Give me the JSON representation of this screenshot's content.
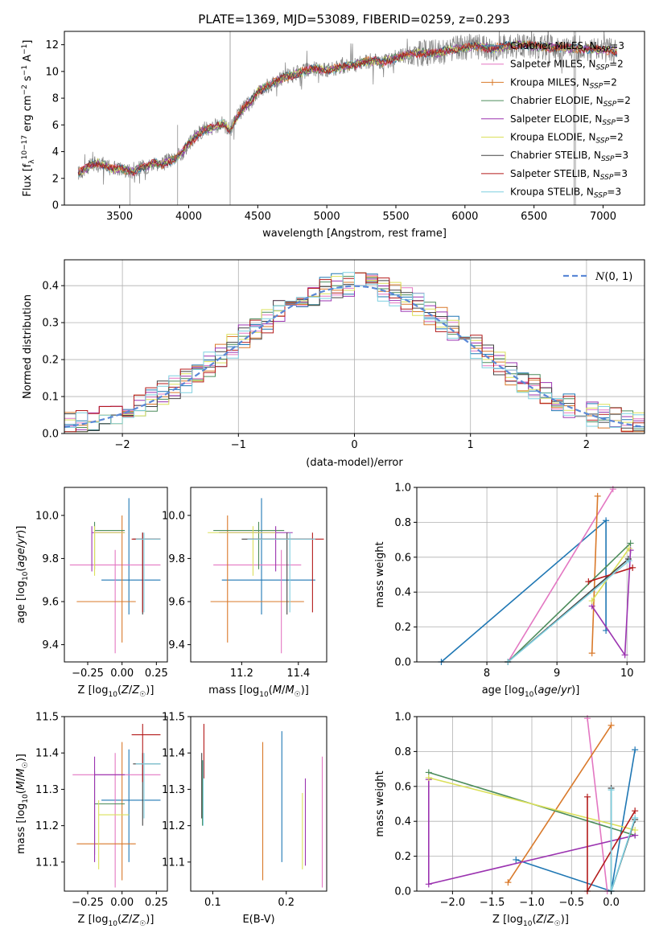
{
  "figure_title": "PLATE=1369, MJD=53089, FIBERID=0259, z=0.293",
  "colors": {
    "chabrier_miles": "#1f77b4",
    "salpeter_miles": "#e377c2",
    "kroupa_miles": "#d9792a",
    "chabrier_elodie": "#4c8c5b",
    "salpeter_elodie": "#9b33b0",
    "kroupa_elodie": "#dbe05a",
    "chabrier_stelib": "#444444",
    "salpeter_stelib": "#b41b1b",
    "kroupa_stelib": "#7fd0e0",
    "gauss": "#5b88d6",
    "data": "#808080"
  },
  "chart_data": [
    {
      "id": "spectrum",
      "type": "line",
      "title": "PLATE=1369, MJD=53089, FIBERID=0259, z=0.293",
      "xlabel": "wavelength [Angstrom, rest frame]",
      "ylabel": "Flux [f_λ 10^-17 erg cm^-2 s^-1 A^-1]",
      "xlim": [
        3100,
        7300
      ],
      "ylim": [
        0,
        13
      ],
      "xticks": [
        3500,
        4000,
        4500,
        5000,
        5500,
        6000,
        6500,
        7000
      ],
      "yticks": [
        0,
        2,
        4,
        6,
        8,
        10,
        12
      ],
      "continuum": {
        "x": [
          3200,
          3300,
          3350,
          3400,
          3450,
          3500,
          3550,
          3600,
          3650,
          3700,
          3750,
          3800,
          3850,
          3900,
          3950,
          4000,
          4050,
          4100,
          4150,
          4200,
          4250,
          4300,
          4350,
          4400,
          4450,
          4500,
          4600,
          4700,
          4800,
          4900,
          5000,
          5100,
          5200,
          5300,
          5400,
          5500,
          5600,
          5700,
          5800,
          5900,
          6000,
          6100,
          6200,
          6300,
          6400,
          6500,
          6600,
          6700,
          6800,
          6900,
          7000,
          7100
        ],
        "y": [
          2.4,
          3.0,
          3.2,
          2.9,
          2.7,
          2.8,
          2.6,
          2.5,
          2.8,
          2.9,
          3.2,
          3.0,
          3.3,
          3.4,
          3.9,
          4.6,
          5.1,
          5.6,
          5.7,
          5.9,
          6.1,
          5.6,
          6.6,
          7.3,
          7.7,
          8.5,
          9.1,
          9.6,
          9.9,
          10.2,
          10.1,
          10.3,
          10.5,
          10.8,
          10.7,
          11.0,
          11.3,
          11.4,
          11.4,
          11.6,
          11.8,
          11.9,
          11.7,
          11.9,
          12.0,
          11.9,
          11.8,
          11.8,
          11.7,
          11.7,
          11.6,
          11.5
        ]
      },
      "legend": [
        {
          "label": "Chabrier MILES, N",
          "sub": "SSP",
          "suffix": "=3",
          "color": "chabrier_miles",
          "marker": "none"
        },
        {
          "label": "Salpeter MILES, N",
          "sub": "SSP",
          "suffix": "=2",
          "color": "salpeter_miles",
          "marker": "none"
        },
        {
          "label": "Kroupa MILES, N",
          "sub": "SSP",
          "suffix": "=2",
          "color": "kroupa_miles",
          "marker": "plus"
        },
        {
          "label": "Chabrier ELODIE, N",
          "sub": "SSP",
          "suffix": "=2",
          "color": "chabrier_elodie",
          "marker": "none"
        },
        {
          "label": "Salpeter ELODIE, N",
          "sub": "SSP",
          "suffix": "=3",
          "color": "salpeter_elodie",
          "marker": "none"
        },
        {
          "label": "Kroupa ELODIE, N",
          "sub": "SSP",
          "suffix": "=2",
          "color": "kroupa_elodie",
          "marker": "none"
        },
        {
          "label": "Chabrier STELIB, N",
          "sub": "SSP",
          "suffix": "=3",
          "color": "chabrier_stelib",
          "marker": "none"
        },
        {
          "label": "Salpeter STELIB, N",
          "sub": "SSP",
          "suffix": "=3",
          "color": "salpeter_stelib",
          "marker": "none"
        },
        {
          "label": "Kroupa STELIB, N",
          "sub": "SSP",
          "suffix": "=3",
          "color": "kroupa_stelib",
          "marker": "none"
        }
      ],
      "legend_position": "right"
    },
    {
      "id": "residuals",
      "type": "histogram",
      "xlabel": "(data-model)/error",
      "ylabel": "Normed distribution",
      "xlim": [
        -2.5,
        2.5
      ],
      "ylim": [
        0,
        0.47
      ],
      "xticks": [
        -2,
        -1,
        0,
        1,
        2
      ],
      "yticks": [
        0.0,
        0.1,
        0.2,
        0.3,
        0.4
      ],
      "bin_width": 0.1,
      "gauss_label": "N(0,1)",
      "legend_position": "top-right"
    },
    {
      "id": "z_age",
      "type": "errorbar",
      "xlabel": "Z [log10(Z/Z☉)]",
      "ylabel": "age  [log10(age/yr)]",
      "xlim": [
        -0.42,
        0.33
      ],
      "ylim": [
        9.32,
        10.13
      ],
      "xticks": [
        -0.25,
        0.0,
        0.25
      ],
      "xticklabels": [
        "−0.25",
        "0.00",
        "0.25"
      ],
      "yticks": [
        9.4,
        9.6,
        9.8,
        10.0
      ],
      "points": [
        {
          "c": "chabrier_miles",
          "x": 0.05,
          "xl": -0.15,
          "xh": 0.28,
          "y": 9.7,
          "yl": 9.54,
          "yh": 10.08
        },
        {
          "c": "salpeter_miles",
          "x": -0.05,
          "xl": -0.38,
          "xh": 0.28,
          "y": 9.77,
          "yl": 9.36,
          "yh": 9.84
        },
        {
          "c": "kroupa_miles",
          "x": 0.0,
          "xl": -0.33,
          "xh": 0.1,
          "y": 9.6,
          "yl": 9.41,
          "yh": 10.0
        },
        {
          "c": "chabrier_elodie",
          "x": -0.2,
          "xl": -0.2,
          "xh": 0.02,
          "y": 9.93,
          "yl": 9.75,
          "yh": 9.97
        },
        {
          "c": "salpeter_elodie",
          "x": -0.22,
          "xl": -0.22,
          "xh": 0.02,
          "y": 9.92,
          "yl": 9.74,
          "yh": 9.95
        },
        {
          "c": "kroupa_elodie",
          "x": -0.2,
          "xl": -0.2,
          "xh": 0.02,
          "y": 9.92,
          "yl": 9.72,
          "yh": 9.95
        },
        {
          "c": "chabrier_stelib",
          "x": 0.15,
          "xl": 0.08,
          "xh": 0.28,
          "y": 9.89,
          "yl": 9.54,
          "yh": 9.92
        },
        {
          "c": "salpeter_stelib",
          "x": 0.15,
          "xl": 0.07,
          "xh": 0.28,
          "y": 9.89,
          "yl": 9.55,
          "yh": 9.92
        },
        {
          "c": "kroupa_stelib",
          "x": 0.16,
          "xl": 0.1,
          "xh": 0.28,
          "y": 9.89,
          "yl": 9.55,
          "yh": 9.92
        }
      ]
    },
    {
      "id": "mass_age",
      "type": "errorbar",
      "xlabel": "mass [log10(M/M☉)]",
      "ylabel": "",
      "xlim": [
        11.02,
        11.5
      ],
      "ylim": [
        9.32,
        10.13
      ],
      "xticks": [
        11.2,
        11.4
      ],
      "xticklabels": [
        "11.2",
        "11.4"
      ],
      "yticks": [
        9.4,
        9.6,
        9.8,
        10.0
      ],
      "points": [
        {
          "c": "chabrier_miles",
          "x": 11.27,
          "xl": 11.13,
          "xh": 11.46,
          "y": 9.7,
          "yl": 9.54,
          "yh": 10.08
        },
        {
          "c": "salpeter_miles",
          "x": 11.34,
          "xl": 11.1,
          "xh": 11.41,
          "y": 9.77,
          "yl": 9.36,
          "yh": 9.84
        },
        {
          "c": "kroupa_miles",
          "x": 11.15,
          "xl": 11.09,
          "xh": 11.42,
          "y": 9.6,
          "yl": 9.41,
          "yh": 10.0
        },
        {
          "c": "chabrier_elodie",
          "x": 11.26,
          "xl": 11.1,
          "xh": 11.35,
          "y": 9.93,
          "yl": 9.75,
          "yh": 9.97
        },
        {
          "c": "salpeter_elodie",
          "x": 11.32,
          "xl": 11.12,
          "xh": 11.38,
          "y": 9.92,
          "yl": 9.74,
          "yh": 9.95
        },
        {
          "c": "kroupa_elodie",
          "x": 11.24,
          "xl": 11.08,
          "xh": 11.32,
          "y": 9.92,
          "yl": 9.72,
          "yh": 9.95
        },
        {
          "c": "chabrier_stelib",
          "x": 11.36,
          "xl": 11.2,
          "xh": 11.45,
          "y": 9.89,
          "yl": 9.54,
          "yh": 9.92
        },
        {
          "c": "salpeter_stelib",
          "x": 11.45,
          "xl": 11.22,
          "xh": 11.49,
          "y": 9.89,
          "yl": 9.55,
          "yh": 9.92
        },
        {
          "c": "kroupa_stelib",
          "x": 11.37,
          "xl": 11.22,
          "xh": 11.46,
          "y": 9.89,
          "yl": 9.55,
          "yh": 9.92
        }
      ]
    },
    {
      "id": "z_mass",
      "type": "errorbar",
      "xlabel": "Z [log10(Z/Z☉)]",
      "ylabel": "mass [log10(M/M☉)]",
      "xlim": [
        -0.42,
        0.33
      ],
      "ylim": [
        11.02,
        11.5
      ],
      "xticks": [
        -0.25,
        0.0,
        0.25
      ],
      "xticklabels": [
        "−0.25",
        "0.00",
        "0.25"
      ],
      "yticks": [
        11.1,
        11.2,
        11.3,
        11.4,
        11.5
      ],
      "points": [
        {
          "c": "chabrier_miles",
          "x": 0.05,
          "xl": -0.15,
          "xh": 0.28,
          "y": 11.27,
          "yl": 11.1,
          "yh": 11.41
        },
        {
          "c": "salpeter_miles",
          "x": -0.05,
          "xl": -0.36,
          "xh": 0.28,
          "y": 11.34,
          "yl": 11.03,
          "yh": 11.4
        },
        {
          "c": "kroupa_miles",
          "x": 0.0,
          "xl": -0.33,
          "xh": 0.1,
          "y": 11.15,
          "yl": 11.05,
          "yh": 11.43
        },
        {
          "c": "chabrier_elodie",
          "x": -0.2,
          "xl": -0.2,
          "xh": 0.02,
          "y": 11.26,
          "yl": 11.12,
          "yh": 11.35
        },
        {
          "c": "salpeter_elodie",
          "x": -0.2,
          "xl": -0.2,
          "xh": 0.02,
          "y": 11.34,
          "yl": 11.1,
          "yh": 11.39
        },
        {
          "c": "kroupa_elodie",
          "x": -0.17,
          "xl": -0.17,
          "xh": 0.05,
          "y": 11.23,
          "yl": 11.08,
          "yh": 11.27
        },
        {
          "c": "chabrier_stelib",
          "x": 0.15,
          "xl": 0.08,
          "xh": 0.28,
          "y": 11.37,
          "yl": 11.2,
          "yh": 11.4
        },
        {
          "c": "salpeter_stelib",
          "x": 0.15,
          "xl": 0.07,
          "xh": 0.28,
          "y": 11.45,
          "yl": 11.32,
          "yh": 11.48
        },
        {
          "c": "kroupa_stelib",
          "x": 0.16,
          "xl": 0.1,
          "xh": 0.28,
          "y": 11.37,
          "yl": 11.22,
          "yh": 11.4
        }
      ]
    },
    {
      "id": "ebv_mass",
      "type": "errorbar",
      "xlabel": "E(B-V)",
      "ylabel": "",
      "xlim": [
        0.07,
        0.255
      ],
      "ylim": [
        11.02,
        11.5
      ],
      "xticks": [
        0.1,
        0.2
      ],
      "xticklabels": [
        "0.1",
        "0.2"
      ],
      "yticks": [
        11.1,
        11.2,
        11.3,
        11.4,
        11.5
      ],
      "points": [
        {
          "c": "chabrier_miles",
          "x": 0.194,
          "y": 11.27,
          "yl": 11.1,
          "yh": 11.46
        },
        {
          "c": "salpeter_miles",
          "x": 0.249,
          "y": 11.34,
          "yl": 11.03,
          "yh": 11.39
        },
        {
          "c": "kroupa_miles",
          "x": 0.168,
          "y": 11.15,
          "yl": 11.05,
          "yh": 11.43
        },
        {
          "c": "chabrier_elodie",
          "x": 0.086,
          "y": 11.26,
          "yl": 11.2,
          "yh": 11.38
        },
        {
          "c": "salpeter_elodie",
          "x": 0.226,
          "y": 11.34,
          "yl": 11.09,
          "yh": 11.33
        },
        {
          "c": "kroupa_elodie",
          "x": 0.222,
          "y": 11.23,
          "yl": 11.08,
          "yh": 11.29
        },
        {
          "c": "chabrier_stelib",
          "x": 0.085,
          "y": 11.37,
          "yl": 11.22,
          "yh": 11.4
        },
        {
          "c": "salpeter_stelib",
          "x": 0.088,
          "y": 11.45,
          "yl": 11.33,
          "yh": 11.48
        },
        {
          "c": "kroupa_stelib",
          "x": 0.087,
          "y": 11.37,
          "yl": 11.2,
          "yh": 11.38
        }
      ]
    },
    {
      "id": "age_weight",
      "type": "line",
      "xlabel": "age  [log10(age/yr)]",
      "ylabel": "mass weight",
      "xlim": [
        7.0,
        10.25
      ],
      "ylim": [
        0,
        1
      ],
      "xticks": [
        8,
        9,
        10
      ],
      "xticklabels": [
        "8",
        "9",
        "10"
      ],
      "yticks": [
        0.0,
        0.2,
        0.4,
        0.6,
        0.8,
        1.0
      ],
      "series": [
        {
          "c": "chabrier_miles",
          "x": [
            7.35,
            9.7,
            9.7
          ],
          "y": [
            0.0,
            0.81,
            0.18
          ]
        },
        {
          "c": "salpeter_miles",
          "x": [
            8.3,
            9.8
          ],
          "y": [
            0.0,
            0.99
          ]
        },
        {
          "c": "kroupa_miles",
          "x": [
            9.5,
            9.58
          ],
          "y": [
            0.05,
            0.95
          ]
        },
        {
          "c": "chabrier_elodie",
          "x": [
            8.3,
            10.05
          ],
          "y": [
            0.0,
            0.68
          ]
        },
        {
          "c": "salpeter_elodie",
          "x": [
            9.5,
            9.97,
            10.05
          ],
          "y": [
            0.32,
            0.04,
            0.64
          ]
        },
        {
          "c": "kroupa_elodie",
          "x": [
            9.5,
            10.03
          ],
          "y": [
            0.35,
            0.65
          ]
        },
        {
          "c": "chabrier_stelib",
          "x": [
            8.3,
            10.02
          ],
          "y": [
            0.0,
            0.59
          ]
        },
        {
          "c": "salpeter_stelib",
          "x": [
            9.45,
            10.08
          ],
          "y": [
            0.46,
            0.54
          ]
        },
        {
          "c": "kroupa_stelib",
          "x": [
            8.3,
            10.03
          ],
          "y": [
            0.0,
            0.58
          ]
        }
      ]
    },
    {
      "id": "z_weight",
      "type": "line",
      "xlabel": "Z [log10(Z/Z☉)]",
      "ylabel": "mass weight",
      "xlim": [
        -2.45,
        0.42
      ],
      "ylim": [
        0,
        1
      ],
      "xticks": [
        -2.0,
        -1.5,
        -1.0,
        -0.5,
        0.0
      ],
      "xticklabels": [
        "−2.0",
        "−1.5",
        "−1.0",
        "−0.5",
        "0.0"
      ],
      "yticks": [
        0.0,
        0.2,
        0.4,
        0.6,
        0.8,
        1.0
      ],
      "series": [
        {
          "c": "chabrier_miles",
          "x": [
            -1.2,
            0.0,
            0.3
          ],
          "y": [
            0.18,
            0.0,
            0.81
          ]
        },
        {
          "c": "salpeter_miles",
          "x": [
            -0.3,
            -0.05
          ],
          "y": [
            0.99,
            0.0
          ]
        },
        {
          "c": "kroupa_miles",
          "x": [
            -1.3,
            0.0
          ],
          "y": [
            0.05,
            0.95
          ]
        },
        {
          "c": "chabrier_elodie",
          "x": [
            -2.3,
            0.3
          ],
          "y": [
            0.68,
            0.32
          ]
        },
        {
          "c": "salpeter_elodie",
          "x": [
            -2.3,
            -2.3,
            0.3
          ],
          "y": [
            0.64,
            0.04,
            0.32
          ]
        },
        {
          "c": "kroupa_elodie",
          "x": [
            -2.3,
            0.3
          ],
          "y": [
            0.65,
            0.35
          ]
        },
        {
          "c": "chabrier_stelib",
          "x": [
            0.0,
            0.0,
            0.3
          ],
          "y": [
            0.59,
            0.0,
            0.41
          ]
        },
        {
          "c": "salpeter_stelib",
          "x": [
            -0.3,
            -0.3,
            0.3
          ],
          "y": [
            0.54,
            0.0,
            0.46
          ]
        },
        {
          "c": "kroupa_stelib",
          "x": [
            0.0,
            0.0,
            0.3
          ],
          "y": [
            0.58,
            0.0,
            0.42
          ]
        }
      ]
    }
  ]
}
